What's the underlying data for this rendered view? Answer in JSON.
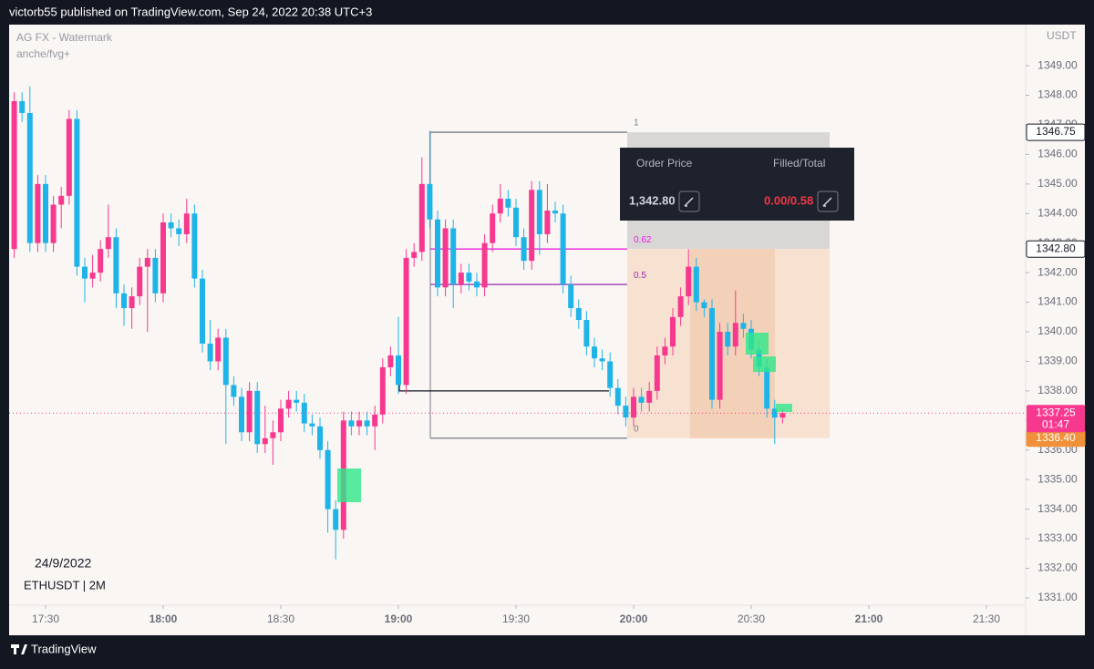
{
  "header": {
    "text": "victorb55 published on TradingView.com, Sep 24, 2022 20:38 UTC+3"
  },
  "footer": {
    "brand": "TradingView"
  },
  "order_panel": {
    "price_title": "Order Price",
    "filled_title": "Filled/Total",
    "price": "1,342.80",
    "filled": "0.00/0.58"
  },
  "chart_data": {
    "type": "candlestick",
    "title": "AG FX - Watermark",
    "subtitle": "anche/fvg+",
    "ylabel": "USDT",
    "annotations": [
      "24/9/2022",
      "ETHUSDT | 2M"
    ],
    "up_color": "#f7388f",
    "down_color": "#1fb4e8",
    "x": [
      "17:22",
      "17:24",
      "17:26",
      "17:28",
      "17:30",
      "17:32",
      "17:34",
      "17:36",
      "17:38",
      "17:40",
      "17:42",
      "17:44",
      "17:46",
      "17:48",
      "17:50",
      "17:52",
      "17:54",
      "17:56",
      "17:58",
      "18:00",
      "18:02",
      "18:04",
      "18:06",
      "18:08",
      "18:10",
      "18:12",
      "18:14",
      "18:16",
      "18:18",
      "18:20",
      "18:22",
      "18:24",
      "18:26",
      "18:28",
      "18:30",
      "18:32",
      "18:34",
      "18:36",
      "18:38",
      "18:40",
      "18:42",
      "18:44",
      "18:46",
      "18:48",
      "18:50",
      "18:52",
      "18:54",
      "18:56",
      "18:58",
      "19:00",
      "19:02",
      "19:04",
      "19:06",
      "19:08",
      "19:10",
      "19:12",
      "19:14",
      "19:16",
      "19:18",
      "19:20",
      "19:22",
      "19:24",
      "19:26",
      "19:28",
      "19:30",
      "19:32",
      "19:34",
      "19:36",
      "19:38",
      "19:40",
      "19:42",
      "19:44",
      "19:46",
      "19:48",
      "19:50",
      "19:52",
      "19:54",
      "19:56",
      "19:58",
      "20:00",
      "20:02",
      "20:04",
      "20:06",
      "20:08",
      "20:10",
      "20:12",
      "20:14",
      "20:16",
      "20:18",
      "20:20",
      "20:22",
      "20:24",
      "20:26",
      "20:28",
      "20:30",
      "20:32",
      "20:34",
      "20:36",
      "20:38"
    ],
    "open": [
      1342.8,
      1347.8,
      1347.4,
      1343.0,
      1345.0,
      1343.0,
      1344.3,
      1344.6,
      1347.2,
      1342.2,
      1341.8,
      1342.0,
      1342.8,
      1343.2,
      1341.3,
      1340.8,
      1341.2,
      1342.2,
      1342.5,
      1341.3,
      1343.7,
      1343.5,
      1343.3,
      1344.0,
      1341.8,
      1339.6,
      1339.0,
      1339.8,
      1338.2,
      1337.8,
      1336.6,
      1338.0,
      1336.2,
      1336.4,
      1336.6,
      1337.4,
      1337.7,
      1337.6,
      1336.9,
      1336.8,
      1336.0,
      1334.0,
      1333.3,
      1337.0,
      1336.8,
      1337.0,
      1336.8,
      1337.2,
      1338.8,
      1339.2,
      1338.2,
      1342.5,
      1342.7,
      1345.0,
      1343.8,
      1341.5,
      1343.5,
      1341.6,
      1342.0,
      1341.7,
      1341.5,
      1343.0,
      1344.0,
      1344.5,
      1344.2,
      1343.2,
      1342.4,
      1344.8,
      1343.3,
      1344.1,
      1344.0,
      1341.6,
      1340.8,
      1340.4,
      1339.5,
      1339.1,
      1339.0,
      1338.1,
      1337.5,
      1337.1,
      1337.8,
      1337.6,
      1338.0,
      1339.2,
      1339.5,
      1340.5,
      1341.2,
      1342.2,
      1341.0,
      1340.8,
      1337.7,
      1340.0,
      1339.5,
      1340.3,
      1340.1,
      1339.4,
      1338.8,
      1337.4,
      1337.1
    ],
    "high": [
      1348.1,
      1348.1,
      1348.3,
      1345.3,
      1345.3,
      1344.6,
      1344.9,
      1347.5,
      1347.5,
      1342.5,
      1342.6,
      1343.1,
      1344.3,
      1343.5,
      1341.6,
      1341.5,
      1342.5,
      1342.8,
      1342.8,
      1344.0,
      1344.0,
      1343.8,
      1344.5,
      1344.3,
      1342.1,
      1340.4,
      1340.1,
      1340.1,
      1338.5,
      1338.1,
      1338.3,
      1338.3,
      1337.5,
      1337.0,
      1337.7,
      1338.0,
      1338.0,
      1337.9,
      1337.2,
      1337.1,
      1336.3,
      1334.3,
      1337.3,
      1337.3,
      1337.3,
      1337.3,
      1337.5,
      1339.1,
      1339.5,
      1340.5,
      1342.8,
      1343.0,
      1345.9,
      1346.8,
      1344.1,
      1343.8,
      1343.8,
      1342.3,
      1342.3,
      1342.0,
      1343.3,
      1344.3,
      1345.0,
      1344.8,
      1344.5,
      1343.5,
      1345.1,
      1345.1,
      1345.0,
      1344.4,
      1344.3,
      1341.9,
      1341.1,
      1340.7,
      1339.8,
      1339.4,
      1339.3,
      1338.4,
      1337.8,
      1338.1,
      1338.1,
      1338.3,
      1339.5,
      1339.8,
      1340.8,
      1341.5,
      1342.8,
      1342.5,
      1341.1,
      1341.1,
      1340.3,
      1340.3,
      1341.4,
      1340.6,
      1340.4,
      1339.7,
      1339.1,
      1337.7,
      1337.4
    ],
    "low": [
      1342.5,
      1347.1,
      1342.7,
      1342.7,
      1342.7,
      1342.7,
      1343.5,
      1344.3,
      1341.9,
      1341.0,
      1341.5,
      1341.7,
      1342.5,
      1340.8,
      1340.2,
      1340.1,
      1340.9,
      1340.0,
      1341.0,
      1341.0,
      1343.2,
      1342.9,
      1343.0,
      1341.5,
      1339.3,
      1338.7,
      1338.7,
      1336.2,
      1337.5,
      1336.3,
      1336.3,
      1335.9,
      1335.9,
      1335.5,
      1336.3,
      1337.1,
      1337.3,
      1336.6,
      1336.5,
      1335.7,
      1333.2,
      1332.3,
      1333.0,
      1336.5,
      1336.5,
      1336.5,
      1336.0,
      1336.9,
      1338.5,
      1337.9,
      1337.9,
      1342.2,
      1342.4,
      1343.5,
      1341.2,
      1341.2,
      1340.8,
      1341.3,
      1341.4,
      1341.2,
      1341.2,
      1342.7,
      1343.7,
      1343.9,
      1342.9,
      1342.1,
      1342.1,
      1342.6,
      1343.0,
      1343.7,
      1341.3,
      1340.5,
      1340.1,
      1339.2,
      1338.8,
      1338.7,
      1337.8,
      1337.2,
      1336.8,
      1336.8,
      1337.3,
      1337.3,
      1337.7,
      1338.9,
      1339.2,
      1340.2,
      1340.9,
      1340.7,
      1340.5,
      1337.4,
      1337.4,
      1339.2,
      1339.2,
      1339.8,
      1339.1,
      1338.5,
      1337.1,
      1336.2,
      1336.9
    ],
    "close": [
      1347.8,
      1347.4,
      1343.0,
      1345.0,
      1343.0,
      1344.3,
      1344.6,
      1347.2,
      1342.2,
      1341.8,
      1342.0,
      1342.8,
      1343.2,
      1341.3,
      1340.8,
      1341.2,
      1342.2,
      1342.5,
      1341.3,
      1343.7,
      1343.5,
      1343.3,
      1344.0,
      1341.8,
      1339.6,
      1339.0,
      1339.8,
      1338.2,
      1337.8,
      1336.6,
      1338.0,
      1336.2,
      1336.4,
      1336.6,
      1337.4,
      1337.7,
      1337.6,
      1336.9,
      1336.8,
      1336.0,
      1334.0,
      1333.3,
      1337.0,
      1336.8,
      1337.0,
      1336.8,
      1337.2,
      1338.8,
      1339.2,
      1338.2,
      1342.5,
      1342.7,
      1345.0,
      1343.8,
      1341.5,
      1343.5,
      1341.6,
      1342.0,
      1341.7,
      1341.5,
      1343.0,
      1344.0,
      1344.5,
      1344.2,
      1343.2,
      1342.4,
      1344.8,
      1343.3,
      1344.1,
      1344.0,
      1341.6,
      1340.8,
      1340.4,
      1339.5,
      1339.1,
      1339.0,
      1338.1,
      1337.5,
      1337.1,
      1337.8,
      1337.6,
      1338.0,
      1339.2,
      1339.5,
      1340.5,
      1341.2,
      1342.2,
      1341.0,
      1340.8,
      1337.7,
      1340.0,
      1339.5,
      1340.3,
      1340.1,
      1339.4,
      1338.8,
      1337.4,
      1337.1,
      1337.25
    ],
    "xlim": [
      "17:20",
      "21:40"
    ],
    "xticks": [
      "17:30",
      "18:00",
      "18:30",
      "19:00",
      "19:30",
      "20:00",
      "20:30",
      "21:00",
      "21:30"
    ],
    "ylim": [
      1329.95,
      1350.39
    ],
    "yticks": [
      {
        "value": 1331,
        "label": "1331.00"
      },
      {
        "value": 1332,
        "label": "1332.00"
      },
      {
        "value": 1333,
        "label": "1333.00"
      },
      {
        "value": 1334,
        "label": "1334.00"
      },
      {
        "value": 1335,
        "label": "1335.00"
      },
      {
        "value": 1336,
        "label": "1336.00"
      },
      {
        "value": 1337,
        "label": "1337.00"
      },
      {
        "value": 1338,
        "label": "1338.00"
      },
      {
        "value": 1339,
        "label": "1339.00"
      },
      {
        "value": 1340,
        "label": "1340.00"
      },
      {
        "value": 1341,
        "label": "1341.00"
      },
      {
        "value": 1342,
        "label": "1342.00"
      },
      {
        "value": 1343,
        "label": "1343.00"
      },
      {
        "value": 1344,
        "label": "1344.00"
      },
      {
        "value": 1345,
        "label": "1345.00"
      },
      {
        "value": 1346,
        "label": "1346.00"
      },
      {
        "value": 1347,
        "label": "1347.00"
      },
      {
        "value": 1348,
        "label": "1348.00"
      },
      {
        "value": 1349,
        "label": "1349.00"
      }
    ],
    "fib_levels": [
      {
        "value": 1346.75,
        "label": "1",
        "color": "#787b86"
      },
      {
        "value": 1342.8,
        "label": "0.62",
        "color": "#e91ee0"
      },
      {
        "value": 1341.6,
        "label": "0.5",
        "color": "#9c27b0"
      },
      {
        "value": 1336.4,
        "label": "0",
        "color": "#787b86"
      }
    ],
    "price_tags": [
      {
        "value": 1346.75,
        "label": "1346.75",
        "color": "#ffffff"
      },
      {
        "value": 1342.8,
        "label": "1342.80",
        "color": "#ffffff"
      },
      {
        "value": 1336.4,
        "label": "1336.40",
        "color": "#f0913a"
      }
    ],
    "last": {
      "value": 1337.25,
      "label": "1337.25",
      "countdown": "01:47",
      "color": "#f7388f"
    }
  }
}
